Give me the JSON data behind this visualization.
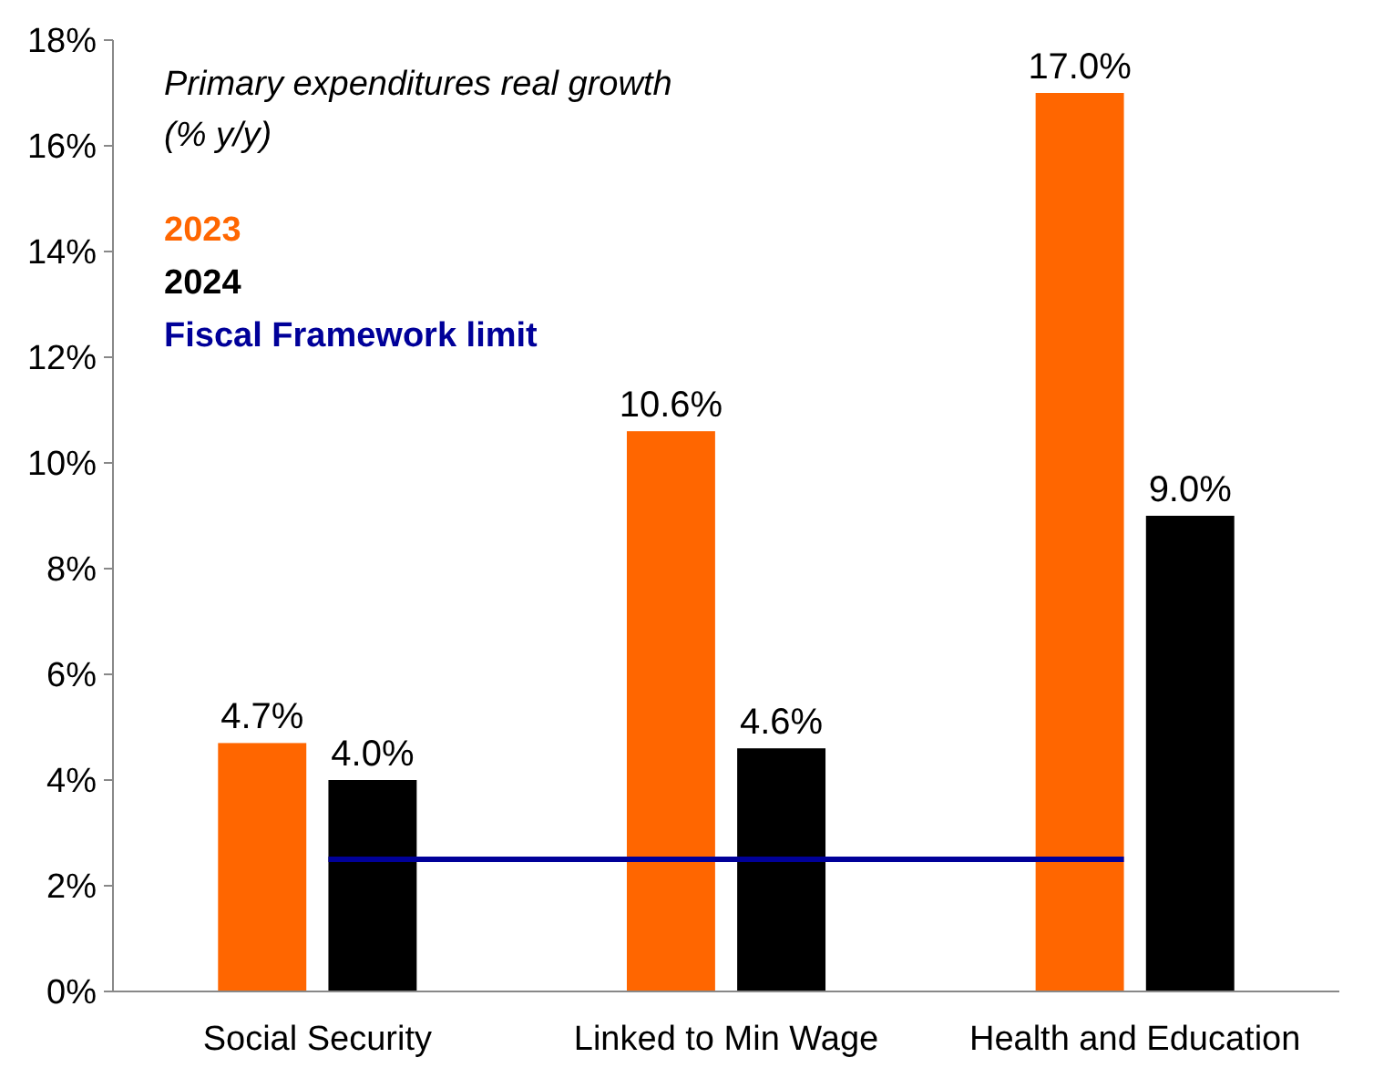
{
  "chart_data": {
    "type": "bar",
    "title": "Primary expenditures real growth\n(% y/y)",
    "categories": [
      "Social Security",
      "Linked to Min Wage",
      "Health and Education"
    ],
    "series": [
      {
        "name": "2023",
        "color": "#ff6600",
        "values": [
          4.7,
          10.6,
          17.0
        ],
        "value_labels": [
          "4.7%",
          "10.6%",
          "17.0%"
        ]
      },
      {
        "name": "2024",
        "color": "#000000",
        "values": [
          4.0,
          4.6,
          9.0
        ],
        "value_labels": [
          "4.0%",
          "4.6%",
          "9.0%"
        ]
      }
    ],
    "ref_lines": [
      {
        "axis": "y",
        "value": 2.5,
        "label": "Fiscal Framework limit",
        "color": "#000099"
      }
    ],
    "ylim": [
      0,
      18
    ],
    "yticks": [
      {
        "value": 0,
        "label": "0%"
      },
      {
        "value": 2,
        "label": "2%"
      },
      {
        "value": 4,
        "label": "4%"
      },
      {
        "value": 6,
        "label": "6%"
      },
      {
        "value": 8,
        "label": "8%"
      },
      {
        "value": 10,
        "label": "10%"
      },
      {
        "value": 12,
        "label": "12%"
      },
      {
        "value": 14,
        "label": "14%"
      },
      {
        "value": 16,
        "label": "16%"
      },
      {
        "value": 18,
        "label": "18%"
      }
    ],
    "grid": false,
    "legend": "top left"
  }
}
